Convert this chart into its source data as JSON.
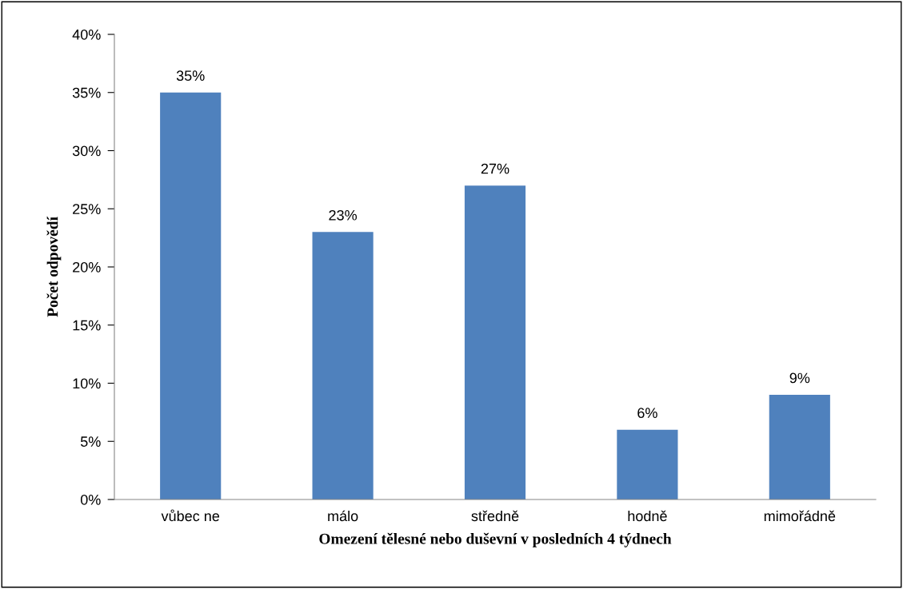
{
  "chart_data": {
    "type": "bar",
    "xlabel": "Omezení tělesné nebo duševní v posledních 4 týdnech",
    "ylabel": "Počet odpovědí",
    "categories": [
      "vůbec ne",
      "málo",
      "středně",
      "hodně",
      "mimořádně"
    ],
    "values": [
      35,
      23,
      27,
      6,
      9
    ],
    "value_labels": [
      "35%",
      "23%",
      "27%",
      "6%",
      "9%"
    ],
    "color": "#4f81bd",
    "ylim": [
      0,
      40
    ],
    "yticks": [
      {
        "value": 0,
        "label": "0%"
      },
      {
        "value": 5,
        "label": "5%"
      },
      {
        "value": 10,
        "label": "10%"
      },
      {
        "value": 15,
        "label": "15%"
      },
      {
        "value": 20,
        "label": "20%"
      },
      {
        "value": 25,
        "label": "25%"
      },
      {
        "value": 30,
        "label": "30%"
      },
      {
        "value": 35,
        "label": "35%"
      },
      {
        "value": 40,
        "label": "40%"
      }
    ],
    "grid": false,
    "legend": false
  }
}
